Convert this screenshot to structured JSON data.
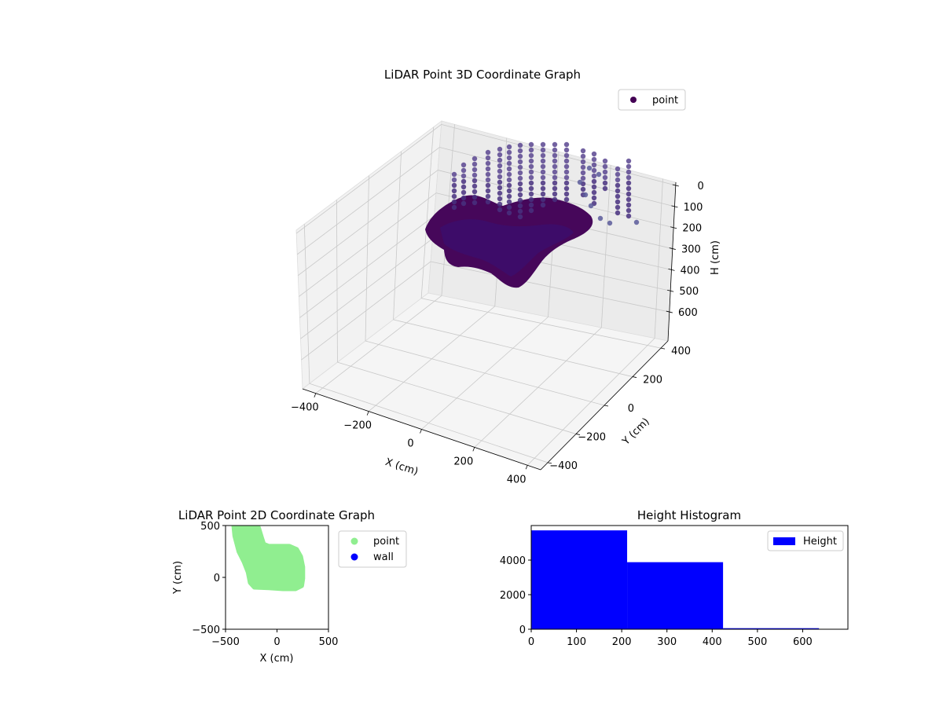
{
  "chart_data": [
    {
      "type": "scatter",
      "projection": "3d",
      "title": "LiDAR Point 3D Coordinate Graph",
      "xlabel": "X (cm)",
      "ylabel": "Y (cm)",
      "zlabel": "H (cm)",
      "x_ticks": [
        "−400",
        "−200",
        "0",
        "200",
        "400"
      ],
      "y_ticks": [
        "−400",
        "−200",
        "0",
        "200",
        "400"
      ],
      "z_ticks": [
        "0",
        "100",
        "200",
        "300",
        "400",
        "500",
        "600"
      ],
      "xlim": [
        -500,
        500
      ],
      "ylim": [
        -500,
        500
      ],
      "zlim": [
        0,
        700
      ],
      "z_axis_inverted": true,
      "grid": true,
      "legend": {
        "placement": "top-right",
        "entries": [
          "point"
        ]
      },
      "series": [
        {
          "name": "point",
          "color": "#440154",
          "colormap": "viridis",
          "description_points": [
            {
              "x": -250,
              "y": 100,
              "h": 400
            },
            {
              "x": -150,
              "y": 50,
              "h": 430
            },
            {
              "x": 0,
              "y": -50,
              "h": 450
            },
            {
              "x": 100,
              "y": -100,
              "h": 440
            },
            {
              "x": 200,
              "y": 150,
              "h": 380
            },
            {
              "x": -200,
              "y": 300,
              "h": 300
            },
            {
              "x": 50,
              "y": 300,
              "h": 250
            },
            {
              "x": 250,
              "y": 450,
              "h": 150
            },
            {
              "x": 300,
              "y": 500,
              "h": 50
            }
          ]
        }
      ]
    },
    {
      "type": "scatter",
      "title": "LiDAR Point 2D Coordinate Graph",
      "xlabel": "X (cm)",
      "ylabel": "Y (cm)",
      "x_ticks": [
        "−500",
        "0",
        "500"
      ],
      "y_ticks": [
        "−500",
        "0",
        "500"
      ],
      "xlim": [
        -500,
        500
      ],
      "ylim": [
        -500,
        500
      ],
      "grid": false,
      "legend": {
        "placement": "outside-right",
        "entries": [
          "point",
          "wall"
        ]
      },
      "series": [
        {
          "name": "point",
          "color": "#90ee90"
        },
        {
          "name": "wall",
          "color": "#0000ff"
        }
      ],
      "point_region": [
        [
          -420,
          500
        ],
        [
          -240,
          500
        ],
        [
          -180,
          480
        ],
        [
          -150,
          380
        ],
        [
          -130,
          320
        ],
        [
          -80,
          300
        ],
        [
          120,
          300
        ],
        [
          190,
          270
        ],
        [
          230,
          200
        ],
        [
          250,
          100
        ],
        [
          250,
          -10
        ],
        [
          240,
          -80
        ],
        [
          180,
          -110
        ],
        [
          60,
          -110
        ],
        [
          -80,
          -100
        ],
        [
          -220,
          -95
        ],
        [
          -260,
          -50
        ],
        [
          -280,
          50
        ],
        [
          -320,
          150
        ],
        [
          -370,
          250
        ],
        [
          -410,
          400
        ],
        [
          -420,
          500
        ]
      ]
    },
    {
      "type": "bar",
      "title": "Height Histogram",
      "xlabel": "",
      "ylabel": "",
      "x_ticks": [
        "0",
        "100",
        "200",
        "300",
        "400",
        "500",
        "600"
      ],
      "y_ticks": [
        "0",
        "2000",
        "4000"
      ],
      "xlim": [
        0,
        700
      ],
      "ylim": [
        0,
        6000
      ],
      "color": "#0000ff",
      "legend": {
        "placement": "top-right",
        "entries": [
          "Height"
        ]
      },
      "bins": [
        {
          "start": 0,
          "end": 212,
          "value": 5720
        },
        {
          "start": 212,
          "end": 424,
          "value": 3880
        },
        {
          "start": 424,
          "end": 636,
          "value": 60
        }
      ]
    }
  ]
}
